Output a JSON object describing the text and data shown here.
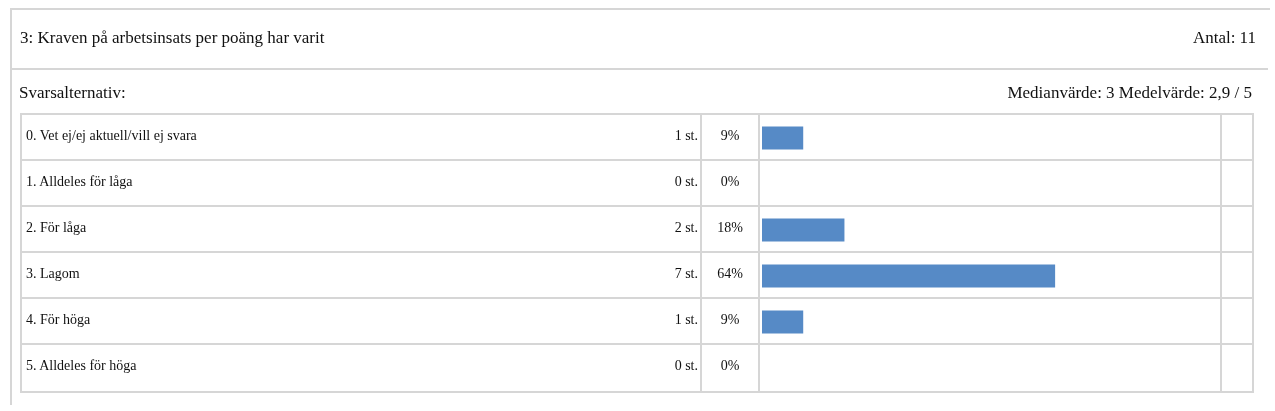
{
  "chart_data": {
    "type": "bar",
    "orientation": "horizontal",
    "title": "3:  Kraven på arbetsinsats per poäng har varit",
    "subtitle": "Svarsalternativ:",
    "categories": [
      "0.  Vet ej/ej aktuell/vill ej svara",
      "1.  Alldeles för låga",
      "2.  För låga",
      "3.  Lagom",
      "4.  För höga",
      "5.  Alldeles för höga"
    ],
    "values": [
      9,
      0,
      18,
      64,
      9,
      0
    ],
    "value_labels": [
      "9%",
      "0%",
      "18%",
      "64%",
      "9%",
      "0%"
    ],
    "color": "#568ac6",
    "xlim": [
      0,
      100
    ],
    "tick_labels": false,
    "annotations": [
      "Antal:  11",
      "Medianvärde: 3 Medelvärde: 2,9 / 5",
      "1 st.",
      "0 st.",
      "2 st.",
      "7 st.",
      "1 st.",
      "0 st."
    ]
  }
}
